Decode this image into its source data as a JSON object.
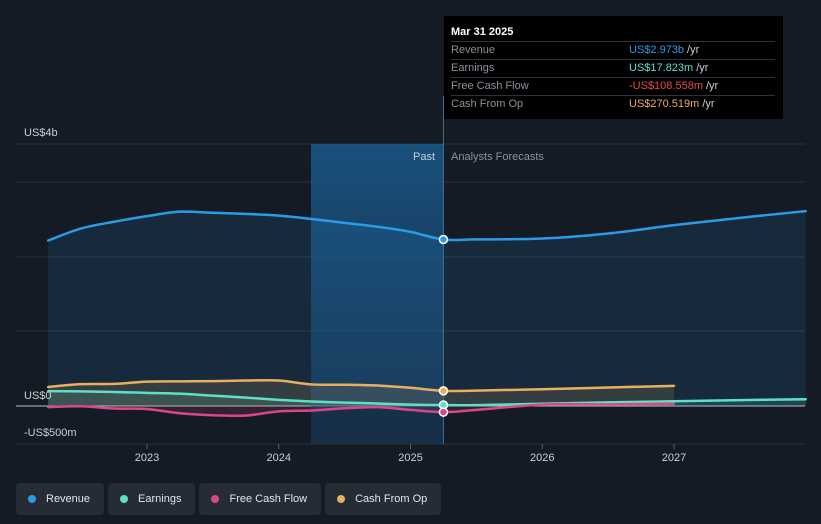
{
  "chart_data": {
    "type": "area",
    "y_axis": {
      "label_top": "US$4b",
      "label_zero": "US$0",
      "label_bottom": "-US$500m",
      "ylim": [
        -500,
        4000
      ],
      "unit": "US$m"
    },
    "x_ticks": [
      "2023",
      "2024",
      "2025",
      "2026",
      "2027"
    ],
    "divider": {
      "past_label": "Past",
      "forecast_label": "Analysts Forecasts",
      "date": 2025.25
    },
    "series": [
      {
        "name": "Revenue",
        "color": "#2a9be6",
        "x": [
          2022.25,
          2022.5,
          2022.75,
          2023.0,
          2023.25,
          2023.5,
          2023.75,
          2024.0,
          2024.25,
          2024.5,
          2024.75,
          2025.0,
          2025.25,
          2025.5,
          2026.0,
          2026.5,
          2027.0,
          2027.5,
          2028.0
        ],
        "values": [
          2955,
          3170,
          3290,
          3390,
          3470,
          3450,
          3430,
          3400,
          3340,
          3270,
          3200,
          3110,
          2973,
          2975,
          2990,
          3080,
          3230,
          3360,
          3480
        ]
      },
      {
        "name": "Earnings",
        "color": "#5de0c8",
        "x": [
          2022.25,
          2022.5,
          2022.75,
          2023.0,
          2023.25,
          2023.5,
          2023.75,
          2024.0,
          2024.25,
          2024.5,
          2024.75,
          2025.0,
          2025.25,
          2025.5,
          2026.0,
          2026.5,
          2027.0,
          2027.5,
          2028.0
        ],
        "values": [
          265,
          262,
          250,
          235,
          220,
          185,
          150,
          110,
          80,
          60,
          45,
          25,
          17.823,
          15,
          40,
          65,
          85,
          105,
          120
        ]
      },
      {
        "name": "Free Cash Flow",
        "color": "#d9478a",
        "x": [
          2022.25,
          2022.5,
          2022.75,
          2023.0,
          2023.25,
          2023.5,
          2023.75,
          2024.0,
          2024.25,
          2024.5,
          2024.75,
          2025.0,
          2025.25,
          2025.5,
          2026.0,
          2026.5,
          2027.0
        ],
        "values": [
          -20,
          -5,
          -45,
          -55,
          -130,
          -165,
          -170,
          -95,
          -80,
          -40,
          -20,
          -70,
          -108.558,
          -70,
          25,
          30,
          40
        ]
      },
      {
        "name": "Cash From Op",
        "color": "#e8ae62",
        "x": [
          2022.25,
          2022.5,
          2022.75,
          2023.0,
          2023.25,
          2023.5,
          2023.75,
          2024.0,
          2024.25,
          2024.5,
          2024.75,
          2025.0,
          2025.25,
          2025.5,
          2026.0,
          2026.5,
          2027.0
        ],
        "values": [
          340,
          390,
          395,
          435,
          440,
          445,
          455,
          455,
          385,
          380,
          365,
          325,
          270.519,
          275,
          300,
          330,
          360
        ]
      }
    ]
  },
  "tooltip": {
    "date": "Mar 31 2025",
    "rows": [
      {
        "label": "Revenue",
        "value": "US$2.973b",
        "unit": "/yr",
        "color": "#2a9be6"
      },
      {
        "label": "Earnings",
        "value": "US$17.823m",
        "unit": "/yr",
        "color": "#5de0c8"
      },
      {
        "label": "Free Cash Flow",
        "value": "-US$108.558m",
        "unit": "/yr",
        "color": "#e24d4d"
      },
      {
        "label": "Cash From Op",
        "value": "US$270.519m",
        "unit": "/yr",
        "color": "#e8ae62"
      }
    ]
  },
  "legend": [
    {
      "label": "Revenue",
      "color": "#2a9be6"
    },
    {
      "label": "Earnings",
      "color": "#5de0c8"
    },
    {
      "label": "Free Cash Flow",
      "color": "#d9478a"
    },
    {
      "label": "Cash From Op",
      "color": "#e8ae62"
    }
  ]
}
